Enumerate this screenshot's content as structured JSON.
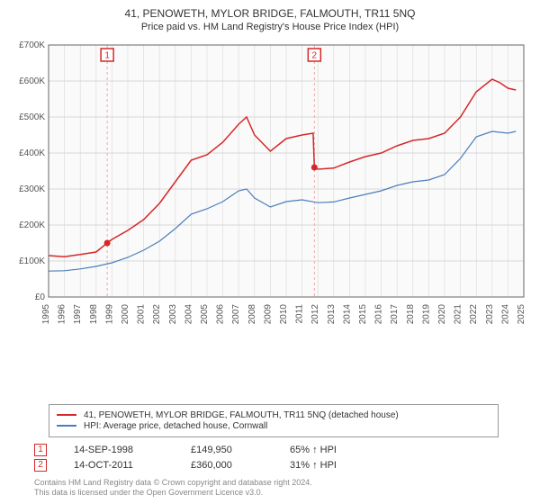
{
  "title": "41, PENOWETH, MYLOR BRIDGE, FALMOUTH, TR11 5NQ",
  "subtitle": "Price paid vs. HM Land Registry's House Price Index (HPI)",
  "chart": {
    "type": "line",
    "background_color": "#ffffff",
    "plot_bg_color": "#fafafa",
    "grid_color": "#d8d8d8",
    "axis_color": "#666666",
    "xlim": [
      1995,
      2025
    ],
    "ylim": [
      0,
      700000
    ],
    "ytick_step": 100000,
    "ytick_labels": [
      "£0",
      "£100K",
      "£200K",
      "£300K",
      "£400K",
      "£500K",
      "£600K",
      "£700K"
    ],
    "xticks": [
      1995,
      1996,
      1997,
      1998,
      1999,
      2000,
      2001,
      2002,
      2003,
      2004,
      2005,
      2006,
      2007,
      2008,
      2009,
      2010,
      2011,
      2012,
      2013,
      2014,
      2015,
      2016,
      2017,
      2018,
      2019,
      2020,
      2021,
      2022,
      2023,
      2024,
      2025
    ],
    "series": [
      {
        "name": "41, PENOWETH, MYLOR BRIDGE, FALMOUTH, TR11 5NQ (detached house)",
        "color": "#d62728",
        "line_width": 1.5,
        "data": [
          [
            1995,
            115000
          ],
          [
            1996,
            112000
          ],
          [
            1997,
            118000
          ],
          [
            1998,
            125000
          ],
          [
            1998.7,
            149950
          ],
          [
            1999,
            160000
          ],
          [
            2000,
            185000
          ],
          [
            2001,
            215000
          ],
          [
            2002,
            260000
          ],
          [
            2003,
            320000
          ],
          [
            2004,
            380000
          ],
          [
            2005,
            395000
          ],
          [
            2006,
            430000
          ],
          [
            2007,
            480000
          ],
          [
            2007.5,
            500000
          ],
          [
            2008,
            450000
          ],
          [
            2009,
            405000
          ],
          [
            2010,
            440000
          ],
          [
            2011,
            450000
          ],
          [
            2011.7,
            455000
          ],
          [
            2011.78,
            360000
          ],
          [
            2012,
            355000
          ],
          [
            2013,
            358000
          ],
          [
            2014,
            375000
          ],
          [
            2015,
            390000
          ],
          [
            2016,
            400000
          ],
          [
            2017,
            420000
          ],
          [
            2018,
            435000
          ],
          [
            2019,
            440000
          ],
          [
            2020,
            455000
          ],
          [
            2021,
            500000
          ],
          [
            2022,
            570000
          ],
          [
            2023,
            605000
          ],
          [
            2023.5,
            595000
          ],
          [
            2024,
            580000
          ],
          [
            2024.5,
            575000
          ]
        ]
      },
      {
        "name": "HPI: Average price, detached house, Cornwall",
        "color": "#4a7ebb",
        "line_width": 1.2,
        "data": [
          [
            1995,
            72000
          ],
          [
            1996,
            73000
          ],
          [
            1997,
            78000
          ],
          [
            1998,
            85000
          ],
          [
            1999,
            95000
          ],
          [
            2000,
            110000
          ],
          [
            2001,
            130000
          ],
          [
            2002,
            155000
          ],
          [
            2003,
            190000
          ],
          [
            2004,
            230000
          ],
          [
            2005,
            245000
          ],
          [
            2006,
            265000
          ],
          [
            2007,
            295000
          ],
          [
            2007.5,
            300000
          ],
          [
            2008,
            275000
          ],
          [
            2009,
            250000
          ],
          [
            2010,
            265000
          ],
          [
            2011,
            270000
          ],
          [
            2012,
            262000
          ],
          [
            2013,
            264000
          ],
          [
            2014,
            275000
          ],
          [
            2015,
            285000
          ],
          [
            2016,
            295000
          ],
          [
            2017,
            310000
          ],
          [
            2018,
            320000
          ],
          [
            2019,
            325000
          ],
          [
            2020,
            340000
          ],
          [
            2021,
            385000
          ],
          [
            2022,
            445000
          ],
          [
            2023,
            460000
          ],
          [
            2024,
            455000
          ],
          [
            2024.5,
            460000
          ]
        ]
      }
    ],
    "sale_markers": [
      {
        "n": "1",
        "year": 1998.7,
        "price": 149950,
        "color": "#d62728",
        "dash_color": "#f4a6a6"
      },
      {
        "n": "2",
        "year": 2011.78,
        "price": 360000,
        "color": "#d62728",
        "dash_color": "#f4a6a6"
      }
    ]
  },
  "legend": {
    "items": [
      {
        "color": "#d62728",
        "label": "41, PENOWETH, MYLOR BRIDGE, FALMOUTH, TR11 5NQ (detached house)"
      },
      {
        "color": "#4a7ebb",
        "label": "HPI: Average price, detached house, Cornwall"
      }
    ]
  },
  "sales": [
    {
      "n": "1",
      "color": "#d62728",
      "date": "14-SEP-1998",
      "price": "£149,950",
      "hpi": "65% ↑ HPI"
    },
    {
      "n": "2",
      "color": "#d62728",
      "date": "14-OCT-2011",
      "price": "£360,000",
      "hpi": "31% ↑ HPI"
    }
  ],
  "footer_line1": "Contains HM Land Registry data © Crown copyright and database right 2024.",
  "footer_line2": "This data is licensed under the Open Government Licence v3.0."
}
